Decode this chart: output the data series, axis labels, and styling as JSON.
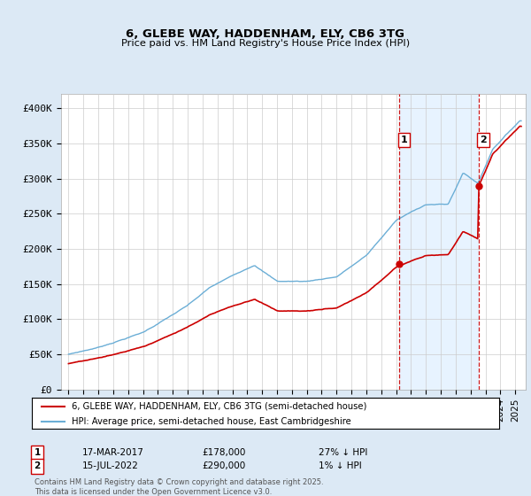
{
  "title1": "6, GLEBE WAY, HADDENHAM, ELY, CB6 3TG",
  "title2": "Price paid vs. HM Land Registry's House Price Index (HPI)",
  "ylabel_ticks": [
    "£0",
    "£50K",
    "£100K",
    "£150K",
    "£200K",
    "£250K",
    "£300K",
    "£350K",
    "£400K"
  ],
  "ytick_values": [
    0,
    50000,
    100000,
    150000,
    200000,
    250000,
    300000,
    350000,
    400000
  ],
  "ylim": [
    0,
    420000
  ],
  "xlim_start": 1994.5,
  "xlim_end": 2025.7,
  "hpi_color": "#6baed6",
  "price_color": "#cc0000",
  "purchase1_date": "17-MAR-2017",
  "purchase1_price": 178000,
  "purchase1_label": "27% ↓ HPI",
  "purchase2_date": "15-JUL-2022",
  "purchase2_price": 290000,
  "purchase2_label": "1% ↓ HPI",
  "purchase1_x": 2017.21,
  "purchase2_x": 2022.54,
  "vline_color": "#cc0000",
  "legend_label1": "6, GLEBE WAY, HADDENHAM, ELY, CB6 3TG (semi-detached house)",
  "legend_label2": "HPI: Average price, semi-detached house, East Cambridgeshire",
  "footer": "Contains HM Land Registry data © Crown copyright and database right 2025.\nThis data is licensed under the Open Government Licence v3.0.",
  "background_color": "#dce9f5",
  "plot_bg_color": "#ffffff",
  "grid_color": "#cccccc",
  "shade_between_color": "#ddeeff"
}
